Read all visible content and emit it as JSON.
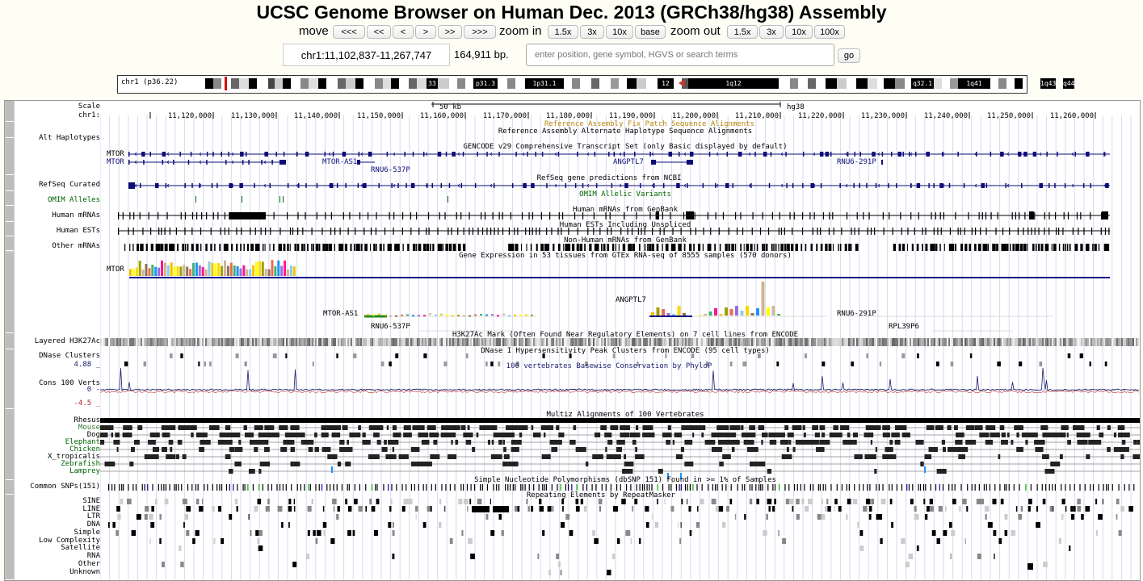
{
  "title": "UCSC Genome Browser on Human Dec. 2013 (GRCh38/hg38) Assembly",
  "nav": {
    "move_label": "move",
    "move_buttons": [
      "<<<",
      "<<",
      "<",
      ">",
      ">>",
      ">>>"
    ],
    "zoom_in_label": "zoom in",
    "zoom_in_buttons": [
      "1.5x",
      "3x",
      "10x",
      "base"
    ],
    "zoom_out_label": "zoom out",
    "zoom_out_buttons": [
      "1.5x",
      "3x",
      "10x",
      "100x"
    ]
  },
  "position": {
    "value": "chr1:11,102,837-11,267,747",
    "size": "164,911 bp.",
    "search_placeholder": "enter position, gene symbol, HGVS or search terms",
    "go_label": "go"
  },
  "ideogram": {
    "label": "chr1 (p36.22)",
    "bands": [
      "33",
      "p31.3",
      "1p31.1",
      "12",
      "1q12",
      "q32.1",
      "1q41",
      "1q43",
      "q44"
    ]
  },
  "tracks": {
    "left_labels": [
      "Scale",
      "chr1:",
      "Alt Haplotypes",
      "RefSeq Curated",
      "OMIM Alleles",
      "Human mRNAs",
      "Human ESTs",
      "Other mRNAs",
      "Layered H3K27Ac",
      "DNase Clusters",
      "4.88 _",
      "Cons 100 Verts",
      "0 -",
      "-4.5 _",
      "Rhesus",
      "Mouse",
      "Dog",
      "Elephant",
      "Chicken",
      "X_tropicalis",
      "Zebrafish",
      "Lamprey",
      "Common SNPs(151)",
      "SINE",
      "LINE",
      "LTR",
      "DNA",
      "Simple",
      "Low Complexity",
      "Satellite",
      "RNA",
      "Other",
      "Unknown"
    ],
    "scale_text": "50 kb",
    "assembly": "hg38",
    "ruler_ticks": [
      "11,120,000",
      "11,130,000",
      "11,140,000",
      "11,150,000",
      "11,160,000",
      "11,170,000",
      "11,180,000",
      "11,190,000",
      "11,200,000",
      "11,210,000",
      "11,220,000",
      "11,230,000",
      "11,240,000",
      "11,250,000",
      "11,260,000"
    ],
    "fix_patch": "Reference Assembly Fix Patch Sequence Alignments",
    "alt_haplo": "Reference Assembly Alternate Haplotype Sequence Alignments",
    "gencode": "GENCODE v29 Comprehensive Transcript Set (only Basic displayed by default)",
    "refseq": "RefSeq gene predictions from NCBI",
    "omim": "OMIM Allelic Variants",
    "mrna": "Human mRNAs from GenBank",
    "est": "Human ESTs Including Unspliced",
    "other_mrna": "Non-Human mRNAs from GenBank",
    "gtex": "Gene Expression in 53 tissues from GTEx RNA-seq of 8555 samples (570 donors)",
    "h3k27ac": "H3K27Ac Mark (Often Found Near Regulatory Elements) on 7 cell lines from ENCODE",
    "dnase": "DNase I Hypersensitivity Peak Clusters from ENCODE (95 cell types)",
    "phylop": "100 vertebrates Basewise Conservation by PhyloP",
    "multiz": "Multiz Alignments of 100 Vertebrates",
    "snp": "Simple Nucleotide Polymorphisms (dbSNP 151) Found in >= 1% of Samples",
    "rmsk": "Repeating Elements by RepeatMasker",
    "genes": {
      "mtor1": "MTOR",
      "mtor2": "MTOR",
      "mtor_as1": "MTOR-AS1",
      "rnu6_537p": "RNU6-537P",
      "angptl7": "ANGPTL7",
      "rnu6_291p": "RNU6-291P",
      "gtex_mtor": "MTOR",
      "gtex_angptl7": "ANGPTL7",
      "gtex_mtor_as1": "MTOR-AS1",
      "gtex_rnu6_291p": "RNU6-291P",
      "gtex_rnu6_537p": "RNU6-537P",
      "gtex_rpl39p6": "RPL39P6"
    }
  },
  "colors": {
    "gene": "#0c0c78",
    "omim": "#006400",
    "phylop": "#191970",
    "fixpatch": "#b8860b",
    "selected": "#d01010"
  }
}
